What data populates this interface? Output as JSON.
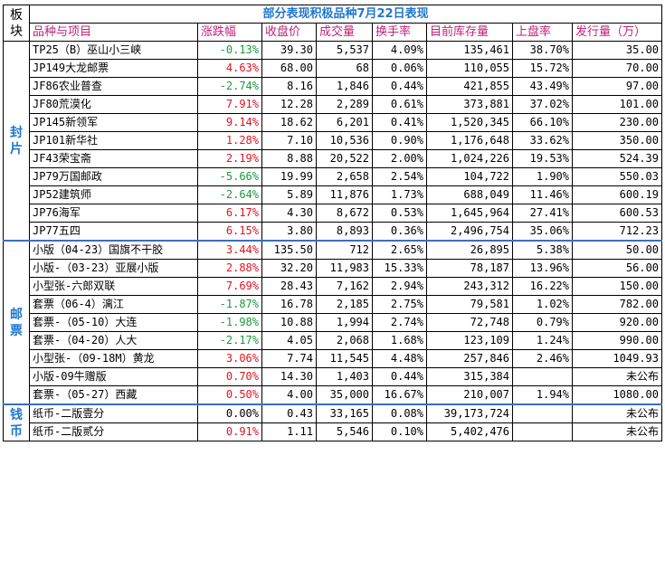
{
  "title": "部分表现积极品种7月22日表现",
  "headers": {
    "section": "板块",
    "name": "品种与项目",
    "change": "涨跌幅",
    "close": "收盘价",
    "volume": "成交量",
    "turnover": "换手率",
    "stock": "目前库存量",
    "listing_rate": "上盘率",
    "issue": "发行量（万）"
  },
  "sections": [
    {
      "label": "封片",
      "rows": [
        {
          "name": "TP25（B）巫山小三峡",
          "change": "-0.13%",
          "dir": "down",
          "close": "39.30",
          "volume": "5,537",
          "turnover": "4.09%",
          "stock": "135,461",
          "listing_rate": "38.70%",
          "issue": "35.00"
        },
        {
          "name": "JP149大龙邮票",
          "change": "4.63%",
          "dir": "up",
          "close": "68.00",
          "volume": "68",
          "turnover": "0.06%",
          "stock": "110,055",
          "listing_rate": "15.72%",
          "issue": "70.00"
        },
        {
          "name": "JF86农业普查",
          "change": "-2.74%",
          "dir": "down",
          "close": "8.16",
          "volume": "1,846",
          "turnover": "0.44%",
          "stock": "421,855",
          "listing_rate": "43.49%",
          "issue": "97.00"
        },
        {
          "name": "JF80荒漠化",
          "change": "7.91%",
          "dir": "up",
          "close": "12.28",
          "volume": "2,289",
          "turnover": "0.61%",
          "stock": "373,881",
          "listing_rate": "37.02%",
          "issue": "101.00"
        },
        {
          "name": "JP145新领军",
          "change": "9.14%",
          "dir": "up",
          "close": "18.62",
          "volume": "6,201",
          "turnover": "0.41%",
          "stock": "1,520,345",
          "listing_rate": "66.10%",
          "issue": "230.00"
        },
        {
          "name": "JP101新华社",
          "change": "1.28%",
          "dir": "up",
          "close": "7.10",
          "volume": "10,536",
          "turnover": "0.90%",
          "stock": "1,176,648",
          "listing_rate": "33.62%",
          "issue": "350.00"
        },
        {
          "name": "JF43荣宝斋",
          "change": "2.19%",
          "dir": "up",
          "close": "8.88",
          "volume": "20,522",
          "turnover": "2.00%",
          "stock": "1,024,226",
          "listing_rate": "19.53%",
          "issue": "524.39"
        },
        {
          "name": "JP79万国邮政",
          "change": "-5.66%",
          "dir": "down",
          "close": "19.99",
          "volume": "2,658",
          "turnover": "2.54%",
          "stock": "104,722",
          "listing_rate": "1.90%",
          "issue": "550.03"
        },
        {
          "name": "JP52建筑师",
          "change": "-2.64%",
          "dir": "down",
          "close": "5.89",
          "volume": "11,876",
          "turnover": "1.73%",
          "stock": "688,049",
          "listing_rate": "11.46%",
          "issue": "600.19"
        },
        {
          "name": "JP76海军",
          "change": "6.17%",
          "dir": "up",
          "close": "4.30",
          "volume": "8,672",
          "turnover": "0.53%",
          "stock": "1,645,964",
          "listing_rate": "27.41%",
          "issue": "600.53"
        },
        {
          "name": "JP77五四",
          "change": "6.15%",
          "dir": "up",
          "close": "3.80",
          "volume": "8,893",
          "turnover": "0.36%",
          "stock": "2,496,754",
          "listing_rate": "35.06%",
          "issue": "712.23"
        }
      ]
    },
    {
      "label": "邮票",
      "rows": [
        {
          "name": "小版（04-23）国旗不干胶",
          "change": "3.44%",
          "dir": "up",
          "close": "135.50",
          "volume": "712",
          "turnover": "2.65%",
          "stock": "26,895",
          "listing_rate": "5.38%",
          "issue": "50.00"
        },
        {
          "name": "小版-（03-23）亚展小版",
          "change": "2.88%",
          "dir": "up",
          "close": "32.20",
          "volume": "11,983",
          "turnover": "15.33%",
          "stock": "78,187",
          "listing_rate": "13.96%",
          "issue": "56.00"
        },
        {
          "name": "小型张-六郎双联",
          "change": "7.69%",
          "dir": "up",
          "close": "28.43",
          "volume": "7,162",
          "turnover": "2.94%",
          "stock": "243,312",
          "listing_rate": "16.22%",
          "issue": "150.00"
        },
        {
          "name": "套票（06-4）漓江",
          "change": "-1.87%",
          "dir": "down",
          "close": "16.78",
          "volume": "2,185",
          "turnover": "2.75%",
          "stock": "79,581",
          "listing_rate": "1.02%",
          "issue": "782.00"
        },
        {
          "name": "套票-（05-10）大连",
          "change": "-1.98%",
          "dir": "down",
          "close": "10.88",
          "volume": "1,994",
          "turnover": "2.74%",
          "stock": "72,748",
          "listing_rate": "0.79%",
          "issue": "920.00"
        },
        {
          "name": "套票-（04-20）人大",
          "change": "-2.17%",
          "dir": "down",
          "close": "4.05",
          "volume": "2,068",
          "turnover": "1.68%",
          "stock": "123,109",
          "listing_rate": "1.24%",
          "issue": "990.00"
        },
        {
          "name": "小型张-（09-18M）黄龙",
          "change": "3.06%",
          "dir": "up",
          "close": "7.74",
          "volume": "11,545",
          "turnover": "4.48%",
          "stock": "257,846",
          "listing_rate": "2.46%",
          "issue": "1049.93"
        },
        {
          "name": "小版-09牛赠版",
          "change": "0.70%",
          "dir": "up",
          "close": "14.30",
          "volume": "1,403",
          "turnover": "0.44%",
          "stock": "315,384",
          "listing_rate": "",
          "issue": "未公布"
        },
        {
          "name": "套票-（05-27）西藏",
          "change": "0.50%",
          "dir": "up",
          "close": "4.00",
          "volume": "35,000",
          "turnover": "16.67%",
          "stock": "210,007",
          "listing_rate": "1.94%",
          "issue": "1080.00"
        }
      ]
    },
    {
      "label": "钱币",
      "rows": [
        {
          "name": "纸币-二版壹分",
          "change": "0.00%",
          "dir": "flat",
          "close": "0.43",
          "volume": "33,165",
          "turnover": "0.08%",
          "stock": "39,173,724",
          "listing_rate": "",
          "issue": "未公布"
        },
        {
          "name": "纸币-二版贰分",
          "change": "0.91%",
          "dir": "up",
          "close": "1.11",
          "volume": "5,546",
          "turnover": "0.10%",
          "stock": "5,402,476",
          "listing_rate": "",
          "issue": "未公布"
        }
      ]
    }
  ]
}
